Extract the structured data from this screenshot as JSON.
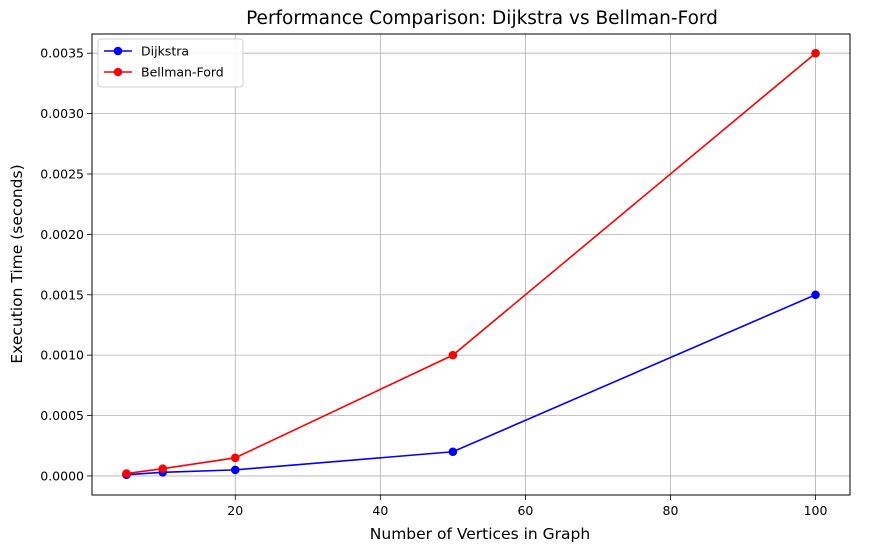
{
  "chart_data": {
    "type": "line",
    "title": "Performance Comparison: Dijkstra vs Bellman-Ford",
    "xlabel": "Number of Vertices in Graph",
    "ylabel": "Execution Time (seconds)",
    "x": [
      5,
      10,
      20,
      50,
      100
    ],
    "xlim": [
      0.25,
      104.75
    ],
    "ylim": [
      -0.000158,
      0.003659
    ],
    "xticks": [
      20,
      40,
      60,
      80,
      100
    ],
    "xtick_labels": [
      "20",
      "40",
      "60",
      "80",
      "100"
    ],
    "yticks": [
      0,
      0.0005,
      0.001,
      0.0015,
      0.002,
      0.0025,
      0.003,
      0.0035
    ],
    "ytick_labels": [
      "0.0000",
      "0.0005",
      "0.0010",
      "0.0015",
      "0.0020",
      "0.0025",
      "0.0030",
      "0.0035"
    ],
    "grid": true,
    "legend_position": "top-left",
    "series": [
      {
        "name": "Dijkstra",
        "color": "#0000ff",
        "marker": "circle",
        "values": [
          1e-05,
          3e-05,
          5e-05,
          0.0002,
          0.0015
        ]
      },
      {
        "name": "Bellman-Ford",
        "color": "#ff0000",
        "marker": "circle",
        "values": [
          2e-05,
          6e-05,
          0.00015,
          0.001,
          0.0035
        ]
      }
    ]
  }
}
